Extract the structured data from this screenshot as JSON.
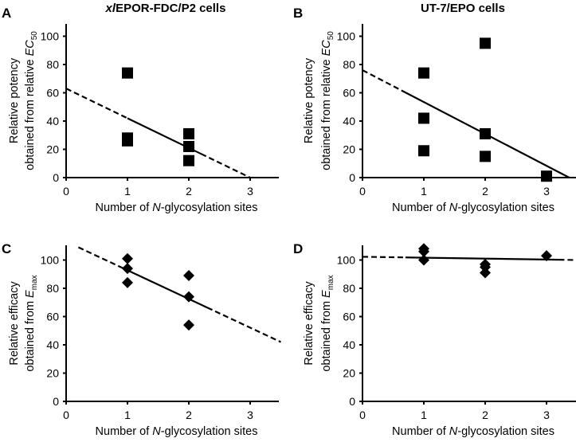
{
  "column_titles": [
    {
      "italic": "xl",
      "rest": "EPOR-FDC/P2 cells"
    },
    {
      "italic": "",
      "rest": "UT-7/EPO cells"
    }
  ],
  "chart_data": [
    {
      "panel": "A",
      "type": "scatter",
      "title": "xlEPOR-FDC/P2 cells",
      "marker": "square",
      "xlabel": "Number of N-glycosylation sites",
      "ylabel": [
        "Relative potency",
        "obtained from relative EC50"
      ],
      "xlim": [
        0,
        3.5
      ],
      "ylim": [
        0,
        110
      ],
      "xticks": [
        0,
        1,
        2,
        3
      ],
      "yticks": [
        0,
        20,
        40,
        60,
        80,
        100
      ],
      "points": [
        [
          1,
          74
        ],
        [
          1,
          28
        ],
        [
          1,
          26
        ],
        [
          2,
          31
        ],
        [
          2,
          22
        ],
        [
          2,
          12
        ]
      ],
      "fit": {
        "x0": 0,
        "y0": 63,
        "x1": 3.0,
        "y1": 0,
        "solid_from": 1.0,
        "solid_to": 2.2
      }
    },
    {
      "panel": "B",
      "type": "scatter",
      "title": "UT-7/EPO cells",
      "marker": "square",
      "xlabel": "Number of N-glycosylation sites",
      "ylabel": [
        "Relative potency",
        "obtained from relative EC50"
      ],
      "xlim": [
        0,
        3.5
      ],
      "ylim": [
        0,
        110
      ],
      "xticks": [
        0,
        1,
        2,
        3
      ],
      "yticks": [
        0,
        20,
        40,
        60,
        80,
        100
      ],
      "points": [
        [
          1,
          74
        ],
        [
          1,
          42
        ],
        [
          1,
          19
        ],
        [
          2,
          95
        ],
        [
          2,
          31
        ],
        [
          2,
          15
        ],
        [
          3,
          1
        ]
      ],
      "fit": {
        "x0": 0,
        "y0": 76,
        "x1": 3.37,
        "y1": 0,
        "solid_from": 0.7,
        "solid_to": 3.37
      }
    },
    {
      "panel": "C",
      "type": "scatter",
      "marker": "diamond",
      "xlabel": "Number of N-glycosylation sites",
      "ylabel": [
        "Relative efficacy",
        "obtained from Emax"
      ],
      "xlim": [
        0,
        3.5
      ],
      "ylim": [
        0,
        110
      ],
      "xticks": [
        0,
        1,
        2,
        3
      ],
      "yticks": [
        0,
        20,
        40,
        60,
        80,
        100
      ],
      "points": [
        [
          1,
          101
        ],
        [
          1,
          94
        ],
        [
          1,
          84
        ],
        [
          2,
          89
        ],
        [
          2,
          74
        ],
        [
          2,
          54
        ]
      ],
      "fit": {
        "x0": 0.2,
        "y0": 109,
        "x1": 3.5,
        "y1": 42,
        "solid_from": 0.9,
        "solid_to": 2.3
      }
    },
    {
      "panel": "D",
      "type": "scatter",
      "marker": "diamond",
      "xlabel": "Number of N-glycosylation sites",
      "ylabel": [
        "Relative efficacy",
        "obtained from Emax"
      ],
      "xlim": [
        0,
        3.5
      ],
      "ylim": [
        0,
        110
      ],
      "xticks": [
        0,
        1,
        2,
        3
      ],
      "yticks": [
        0,
        20,
        40,
        60,
        80,
        100
      ],
      "points": [
        [
          1,
          108
        ],
        [
          1,
          106
        ],
        [
          1,
          100
        ],
        [
          2,
          97
        ],
        [
          2,
          95
        ],
        [
          2,
          91
        ],
        [
          3,
          103
        ]
      ],
      "fit": {
        "x0": 0,
        "y0": 102.3,
        "x1": 3.5,
        "y1": 100,
        "solid_from": 0.7,
        "solid_to": 3.2
      }
    }
  ]
}
